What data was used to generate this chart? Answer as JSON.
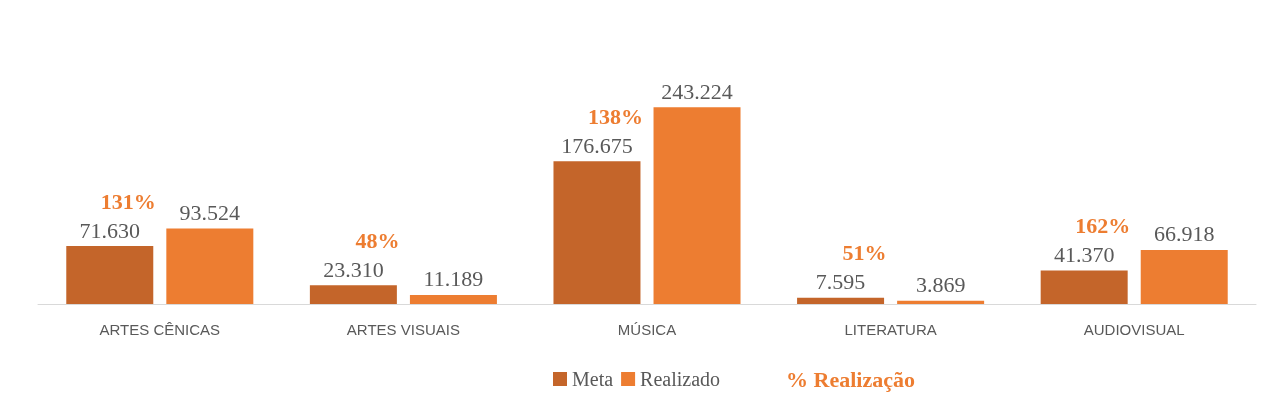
{
  "chart_data": {
    "type": "bar",
    "categories": [
      "ARTES CÊNICAS",
      "ARTES VISUAIS",
      "MÚSICA",
      "LITERATURA",
      "AUDIOVISUAL"
    ],
    "series": [
      {
        "name": "Meta",
        "color": "#c4652a",
        "values": [
          71630,
          23310,
          176675,
          7595,
          41370
        ],
        "value_labels": [
          "71.630",
          "23.310",
          "176.675",
          "7.595",
          "41.370"
        ]
      },
      {
        "name": "Realizado",
        "color": "#ed7d31",
        "values": [
          93524,
          11189,
          243224,
          3869,
          66918
        ],
        "value_labels": [
          "93.524",
          "11.189",
          "243.224",
          "3.869",
          "66.918"
        ]
      }
    ],
    "annotations": [
      "131%",
      "48%",
      "138%",
      "51%",
      "162%",
      "% Realização"
    ],
    "legend": "bottom",
    "grid": false
  }
}
